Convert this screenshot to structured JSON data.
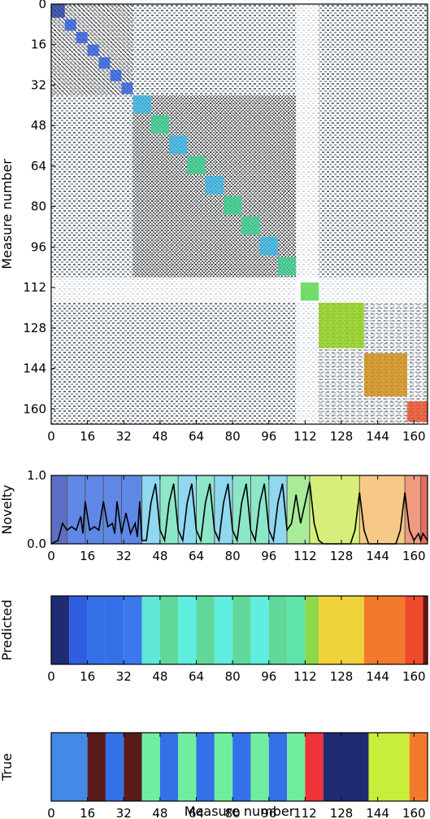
{
  "chart_data": [
    {
      "type": "heatmap",
      "description_source": "self-similarity matrix of measures",
      "ylabel": "Measure number",
      "xlabel": "",
      "xlim": [
        0,
        166
      ],
      "ylim": [
        0,
        166
      ],
      "ticks": [
        0,
        16,
        32,
        48,
        64,
        80,
        96,
        112,
        128,
        144,
        160
      ],
      "background_pattern": "dense grey/black texture with block structure",
      "highlighted_blocks": [
        {
          "start": 0,
          "end": 6,
          "color": "#2a3f9f"
        },
        {
          "start": 6,
          "end": 11,
          "color": "#2f5fe0"
        },
        {
          "start": 11,
          "end": 16,
          "color": "#2f5fe0"
        },
        {
          "start": 16,
          "end": 21,
          "color": "#2f5fe0"
        },
        {
          "start": 21,
          "end": 26,
          "color": "#2f5fe0"
        },
        {
          "start": 26,
          "end": 31,
          "color": "#2f5fe0"
        },
        {
          "start": 31,
          "end": 36,
          "color": "#2f5fe0"
        },
        {
          "start": 36,
          "end": 44,
          "color": "#39b7e6"
        },
        {
          "start": 44,
          "end": 52,
          "color": "#3ad08f"
        },
        {
          "start": 52,
          "end": 60,
          "color": "#39b7e6"
        },
        {
          "start": 60,
          "end": 68,
          "color": "#3ad08f"
        },
        {
          "start": 68,
          "end": 76,
          "color": "#39b7e6"
        },
        {
          "start": 76,
          "end": 84,
          "color": "#3ad08f"
        },
        {
          "start": 84,
          "end": 92,
          "color": "#3ad08f"
        },
        {
          "start": 92,
          "end": 100,
          "color": "#39b7e6"
        },
        {
          "start": 100,
          "end": 108,
          "color": "#3ad08f"
        },
        {
          "start": 110,
          "end": 118,
          "color": "#53d64a"
        },
        {
          "start": 118,
          "end": 138,
          "color": "#8fce16"
        },
        {
          "start": 138,
          "end": 157,
          "color": "#d08c12"
        },
        {
          "start": 157,
          "end": 166,
          "color": "#e84a23"
        }
      ]
    },
    {
      "type": "line",
      "ylabel": "Novelty",
      "xlabel": "",
      "xlim": [
        0,
        166
      ],
      "ylim": [
        0,
        1
      ],
      "yticks": [
        "0.0",
        "1.0"
      ],
      "xticks": [
        0,
        16,
        32,
        48,
        64,
        80,
        96,
        112,
        128,
        144,
        160
      ],
      "segments": [
        {
          "start": 0,
          "end": 7,
          "color": "#5d6fc5"
        },
        {
          "start": 7,
          "end": 15,
          "color": "#5f88e6"
        },
        {
          "start": 15,
          "end": 23,
          "color": "#5f88e6"
        },
        {
          "start": 23,
          "end": 31,
          "color": "#5f88e6"
        },
        {
          "start": 31,
          "end": 40,
          "color": "#5f88e6"
        },
        {
          "start": 40,
          "end": 48,
          "color": "#8fd8f0"
        },
        {
          "start": 48,
          "end": 56,
          "color": "#8ce6c8"
        },
        {
          "start": 56,
          "end": 64,
          "color": "#8fd8f0"
        },
        {
          "start": 64,
          "end": 72,
          "color": "#8ce6c8"
        },
        {
          "start": 72,
          "end": 80,
          "color": "#8fd8f0"
        },
        {
          "start": 80,
          "end": 88,
          "color": "#8ce6c8"
        },
        {
          "start": 88,
          "end": 96,
          "color": "#8ce6c8"
        },
        {
          "start": 96,
          "end": 104,
          "color": "#8fd8f0"
        },
        {
          "start": 104,
          "end": 114,
          "color": "#a8ec9a"
        },
        {
          "start": 114,
          "end": 136,
          "color": "#d7ef7a"
        },
        {
          "start": 136,
          "end": 156,
          "color": "#f6c986"
        },
        {
          "start": 156,
          "end": 163,
          "color": "#f09a80"
        },
        {
          "start": 163,
          "end": 166,
          "color": "#e56d5a"
        }
      ],
      "x": [
        0,
        3,
        5,
        7,
        9,
        11,
        13,
        14,
        15,
        17,
        19,
        21,
        23,
        25,
        27,
        28,
        29,
        31,
        33,
        35,
        37,
        38,
        39,
        40,
        42,
        44,
        46,
        48,
        50,
        52,
        54,
        56,
        58,
        60,
        62,
        64,
        66,
        68,
        70,
        72,
        74,
        76,
        78,
        80,
        82,
        84,
        86,
        88,
        90,
        92,
        94,
        96,
        98,
        100,
        102,
        104,
        106,
        108,
        110,
        112,
        114,
        116,
        118,
        120,
        126,
        132,
        134,
        136,
        138,
        140,
        146,
        152,
        154,
        156,
        158,
        160,
        162,
        163,
        164,
        166
      ],
      "y": [
        0,
        0.05,
        0.3,
        0.2,
        0.25,
        0.2,
        0.4,
        0.15,
        0.62,
        0.2,
        0.25,
        0.2,
        0.62,
        0.25,
        0.3,
        0.15,
        0.62,
        0.15,
        0.45,
        0.15,
        0.3,
        0.1,
        0.62,
        0.05,
        0.05,
        0.6,
        0.88,
        0.2,
        0.05,
        0.6,
        0.88,
        0.2,
        0.05,
        0.6,
        0.88,
        0.2,
        0.05,
        0.6,
        0.88,
        0.2,
        0.05,
        0.6,
        0.88,
        0.2,
        0.05,
        0.6,
        0.88,
        0.2,
        0.05,
        0.6,
        0.88,
        0.2,
        0.05,
        0.6,
        0.88,
        0.2,
        0.3,
        0.72,
        0.3,
        0.6,
        0.9,
        0.3,
        0.05,
        0,
        0,
        0,
        0.2,
        0.75,
        0.2,
        0,
        0,
        0,
        0.2,
        0.75,
        0.2,
        0.05,
        0.15,
        0.05,
        0.15,
        0.05
      ]
    },
    {
      "type": "heatmap",
      "ylabel": "Predicted",
      "xlabel": "",
      "xlim": [
        0,
        166
      ],
      "xticks": [
        0,
        16,
        32,
        48,
        64,
        80,
        96,
        112,
        128,
        144,
        160
      ],
      "segments": [
        {
          "start": 0,
          "end": 8,
          "color": "#1f2b73"
        },
        {
          "start": 8,
          "end": 16,
          "color": "#2f5fe0"
        },
        {
          "start": 16,
          "end": 24,
          "color": "#3470e8"
        },
        {
          "start": 24,
          "end": 32,
          "color": "#3470e8"
        },
        {
          "start": 32,
          "end": 40,
          "color": "#3c78ec"
        },
        {
          "start": 40,
          "end": 48,
          "color": "#5fe8d8"
        },
        {
          "start": 48,
          "end": 56,
          "color": "#5fd89a"
        },
        {
          "start": 56,
          "end": 64,
          "color": "#5feee0"
        },
        {
          "start": 64,
          "end": 72,
          "color": "#5fd89a"
        },
        {
          "start": 72,
          "end": 80,
          "color": "#5feee0"
        },
        {
          "start": 80,
          "end": 88,
          "color": "#5fd89a"
        },
        {
          "start": 88,
          "end": 96,
          "color": "#5feee0"
        },
        {
          "start": 96,
          "end": 104,
          "color": "#5fd89a"
        },
        {
          "start": 104,
          "end": 112,
          "color": "#5fe4a8"
        },
        {
          "start": 112,
          "end": 118,
          "color": "#8fd84a"
        },
        {
          "start": 118,
          "end": 138,
          "color": "#f0d23a"
        },
        {
          "start": 138,
          "end": 156,
          "color": "#f37a2c"
        },
        {
          "start": 156,
          "end": 164,
          "color": "#ee4a2c"
        },
        {
          "start": 164,
          "end": 166,
          "color": "#6b1414"
        }
      ]
    },
    {
      "type": "heatmap",
      "ylabel": "True",
      "xlabel": "Measure number",
      "xlim": [
        0,
        166
      ],
      "xticks": [
        0,
        16,
        32,
        48,
        64,
        80,
        96,
        112,
        128,
        144,
        160
      ],
      "segments": [
        {
          "start": 0,
          "end": 16,
          "color": "#4488e8"
        },
        {
          "start": 16,
          "end": 24,
          "color": "#5a1a1a"
        },
        {
          "start": 24,
          "end": 32,
          "color": "#3470e8"
        },
        {
          "start": 32,
          "end": 40,
          "color": "#5a1a1a"
        },
        {
          "start": 40,
          "end": 48,
          "color": "#6fee9f"
        },
        {
          "start": 48,
          "end": 56,
          "color": "#3470e8"
        },
        {
          "start": 56,
          "end": 64,
          "color": "#6fee9f"
        },
        {
          "start": 64,
          "end": 72,
          "color": "#3470e8"
        },
        {
          "start": 72,
          "end": 80,
          "color": "#6fee9f"
        },
        {
          "start": 80,
          "end": 88,
          "color": "#3470e8"
        },
        {
          "start": 88,
          "end": 96,
          "color": "#6fee9f"
        },
        {
          "start": 96,
          "end": 104,
          "color": "#3470e8"
        },
        {
          "start": 104,
          "end": 112,
          "color": "#6fee9f"
        },
        {
          "start": 112,
          "end": 120,
          "color": "#ef3238"
        },
        {
          "start": 120,
          "end": 140,
          "color": "#1f2b73"
        },
        {
          "start": 140,
          "end": 158,
          "color": "#c8ee3a"
        },
        {
          "start": 158,
          "end": 166,
          "color": "#f37a2c"
        }
      ]
    }
  ]
}
